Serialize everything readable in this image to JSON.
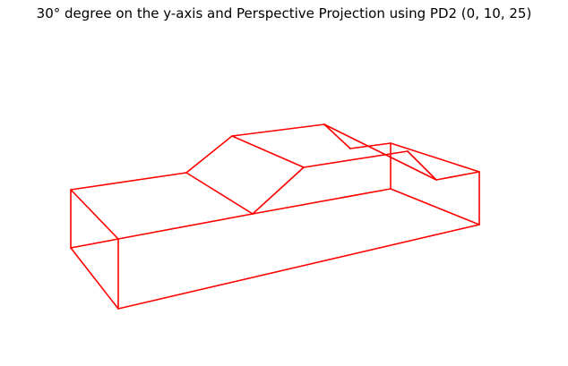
{
  "chart_data": {
    "type": "line",
    "title": "30° degree on the y-axis and Perspective Projection using PD2 (0, 10, 25)",
    "xlabel": "",
    "ylabel": "",
    "axes": "off",
    "grid": false,
    "line_color": "#ff0000",
    "vertices": [
      [
        79,
        212
      ],
      [
        79,
        277
      ],
      [
        132,
        267
      ],
      [
        132,
        345
      ],
      [
        535,
        251
      ],
      [
        535,
        192
      ],
      [
        436,
        211
      ],
      [
        436,
        160
      ],
      [
        487,
        201
      ],
      [
        208,
        193
      ],
      [
        282,
        239
      ],
      [
        339,
        187
      ],
      [
        391,
        166
      ],
      [
        455,
        169
      ],
      [
        259,
        152
      ],
      [
        362,
        139
      ]
    ],
    "edges": [
      [
        0,
        1
      ],
      [
        0,
        2
      ],
      [
        1,
        2
      ],
      [
        1,
        3
      ],
      [
        2,
        3
      ],
      [
        3,
        4
      ],
      [
        4,
        5
      ],
      [
        4,
        6
      ],
      [
        6,
        7
      ],
      [
        5,
        7
      ],
      [
        5,
        8
      ],
      [
        0,
        9
      ],
      [
        9,
        10
      ],
      [
        2,
        10
      ],
      [
        10,
        6
      ],
      [
        9,
        14
      ],
      [
        14,
        11
      ],
      [
        11,
        10
      ],
      [
        14,
        15
      ],
      [
        15,
        12
      ],
      [
        12,
        7
      ],
      [
        15,
        8
      ],
      [
        11,
        13
      ],
      [
        13,
        8
      ]
    ]
  }
}
